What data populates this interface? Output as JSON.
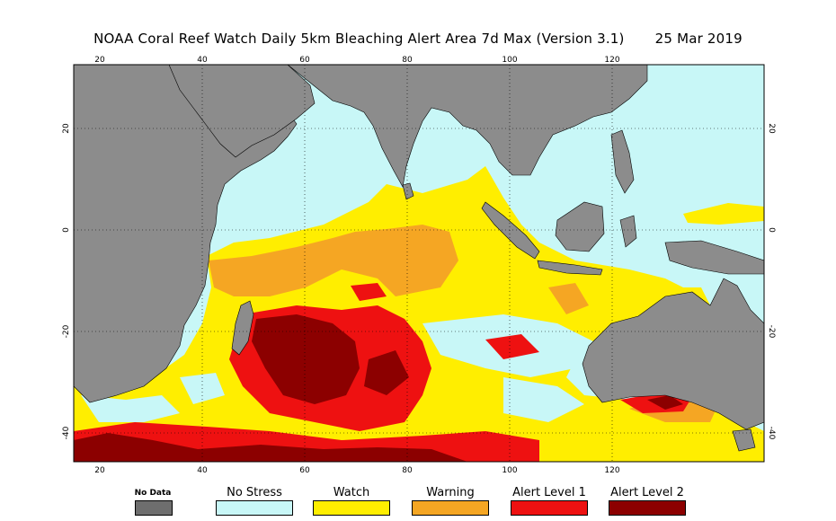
{
  "title": "NOAA Coral Reef Watch Daily 5km Bleaching Alert Area 7d Max (Version 3.1)",
  "date": "25 Mar 2019",
  "axes": {
    "lon_labels": [
      "20",
      "40",
      "60",
      "80",
      "100",
      "120"
    ],
    "lat_labels": [
      "20",
      "0",
      "-20",
      "-40"
    ]
  },
  "legend": [
    {
      "label": "No Data",
      "color": "#6e6e6e"
    },
    {
      "label": "No Stress",
      "color": "#c8f7f7"
    },
    {
      "label": "Watch",
      "color": "#ffee00"
    },
    {
      "label": "Warning",
      "color": "#f5a623"
    },
    {
      "label": "Alert Level 1",
      "color": "#ee1111"
    },
    {
      "label": "Alert Level 2",
      "color": "#8c0000"
    }
  ],
  "colors": {
    "land": "#8c8c8c",
    "no_stress": "#c8f7f7",
    "watch": "#ffee00",
    "warning": "#f5a623",
    "alert1": "#ee1111",
    "alert2": "#8c0000"
  }
}
